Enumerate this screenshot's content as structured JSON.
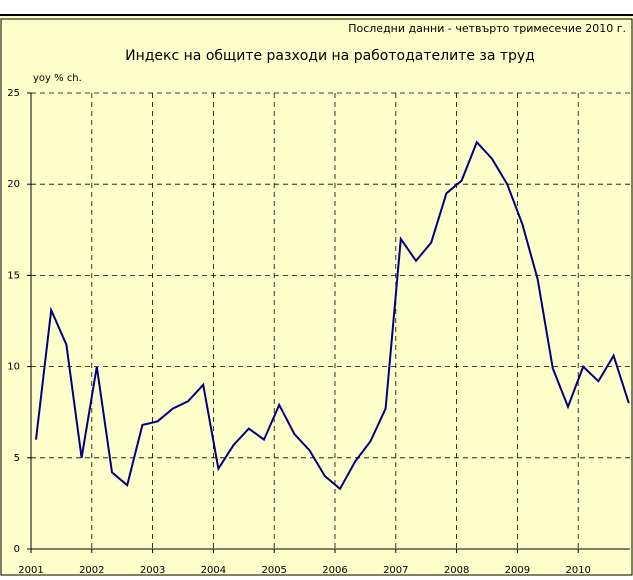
{
  "chart_data": {
    "type": "line",
    "title": "Индекс на общите разходи на работодателите за труд",
    "subtitle": "Последни данни - четвърто тримесечие 2010 г.",
    "y_label": "yoy % ch.",
    "categories": [
      "2001",
      null,
      null,
      null,
      "2002",
      null,
      null,
      null,
      "2003",
      null,
      null,
      null,
      "2004",
      null,
      null,
      null,
      "2005",
      null,
      null,
      null,
      "2006",
      null,
      null,
      null,
      "2007",
      null,
      null,
      null,
      "2008",
      null,
      null,
      null,
      "2009",
      null,
      null,
      null,
      "2010",
      null,
      null,
      null
    ],
    "series": [
      {
        "name": "yoy % ch.",
        "color": "#000080",
        "values": [
          6.0,
          13.1,
          11.2,
          5.0,
          10.0,
          4.2,
          3.5,
          6.8,
          7.0,
          7.7,
          8.1,
          9.0,
          4.4,
          5.7,
          6.6,
          6.0,
          7.9,
          6.3,
          5.4,
          4.0,
          3.3,
          4.8,
          5.9,
          7.7,
          17.0,
          15.8,
          16.8,
          19.5,
          20.2,
          22.3,
          21.4,
          20.0,
          17.8,
          14.8,
          9.9,
          7.8,
          10.0,
          9.2,
          10.6,
          8.0
        ]
      }
    ],
    "ylim": [
      0,
      25
    ],
    "yticks": [
      0,
      5,
      10,
      15,
      20,
      25
    ],
    "grid": true
  }
}
